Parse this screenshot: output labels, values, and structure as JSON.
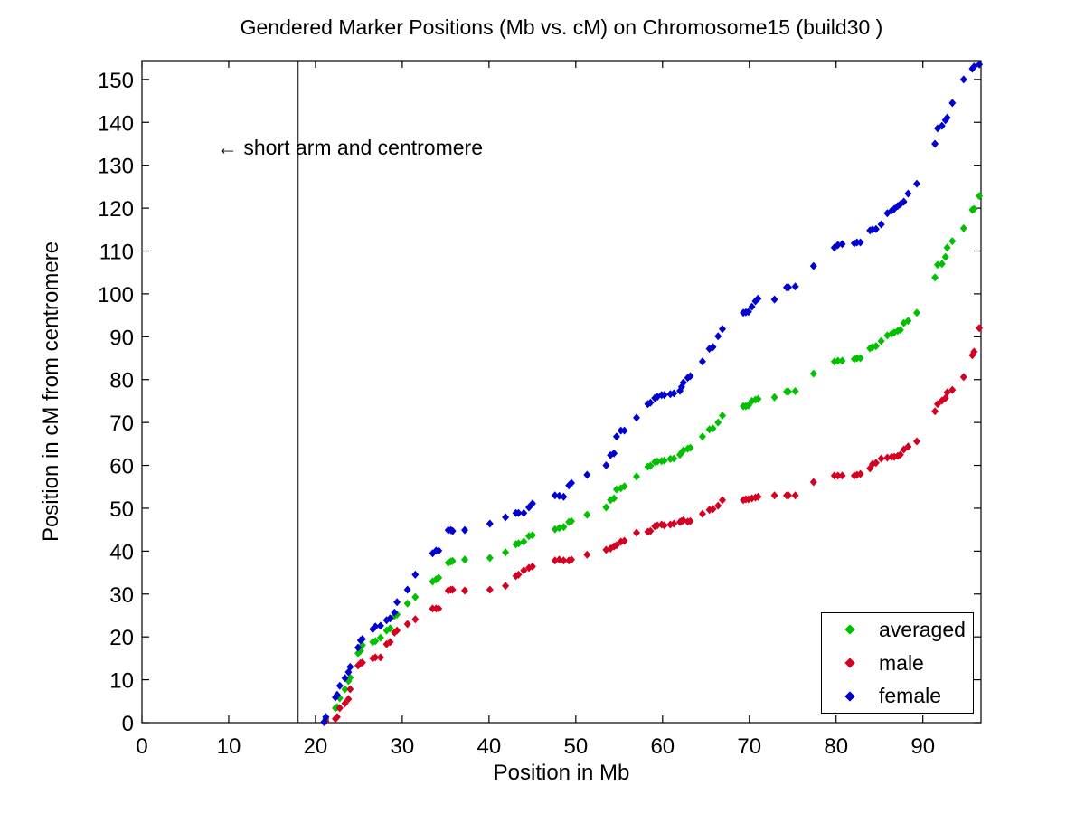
{
  "chart_data": {
    "type": "scatter",
    "title": "Gendered Marker Positions (Mb vs. cM) on Chromosome15 (build30 )",
    "xlabel": "Position in Mb",
    "ylabel": "Position in cM from centromere",
    "xlim": [
      0,
      96.7
    ],
    "ylim": [
      0,
      154.4
    ],
    "xticks": [
      0,
      10,
      20,
      30,
      40,
      50,
      60,
      70,
      80,
      90
    ],
    "yticks": [
      0,
      10,
      20,
      30,
      40,
      50,
      60,
      70,
      80,
      90,
      100,
      110,
      120,
      130,
      140,
      150
    ],
    "grid": false,
    "marker": "diamond",
    "vline_x": 18,
    "annotation": {
      "text": "← short arm and centromere",
      "at_x_mb": 18
    },
    "legend_position": "lower-right",
    "x": [
      21.0,
      21.2,
      22.3,
      22.5,
      22.8,
      23.4,
      23.8,
      24.0,
      24.9,
      25.2,
      25.4,
      26.6,
      26.9,
      27.5,
      28.2,
      28.6,
      29.1,
      29.4,
      30.6,
      31.5,
      33.5,
      33.9,
      34.2,
      35.3,
      35.6,
      35.8,
      37.2,
      40.1,
      41.9,
      43.1,
      43.4,
      44.0,
      44.6,
      45.0,
      47.6,
      48.1,
      48.6,
      49.2,
      49.5,
      51.3,
      53.5,
      54.0,
      54.4,
      54.7,
      55.2,
      55.6,
      57.0,
      58.3,
      58.6,
      59.1,
      59.4,
      59.9,
      60.2,
      60.9,
      61.3,
      62.0,
      62.2,
      62.4,
      62.9,
      63.2,
      64.6,
      65.4,
      65.8,
      66.4,
      66.9,
      69.3,
      69.6,
      69.9,
      70.3,
      70.7,
      71.0,
      72.9,
      74.3,
      74.5,
      75.3,
      77.4,
      79.8,
      80.2,
      80.7,
      82.1,
      82.4,
      82.8,
      83.9,
      84.2,
      84.6,
      85.2,
      85.9,
      86.4,
      86.7,
      87.1,
      87.4,
      87.8,
      88.3,
      89.3,
      91.4,
      91.7,
      92.2,
      92.6,
      92.8,
      93.4,
      94.7,
      95.7,
      95.9,
      96.5
    ],
    "series": [
      {
        "name": "averaged",
        "color": "#00c000",
        "values": [
          0.1,
          0.9,
          3.4,
          3.6,
          5.7,
          7.8,
          9.7,
          10.5,
          16.2,
          16.7,
          18.1,
          18.8,
          19.0,
          19.8,
          21.5,
          22.0,
          24.9,
          25.2,
          27.8,
          29.3,
          32.9,
          33.4,
          33.8,
          37.3,
          37.6,
          37.7,
          38.0,
          38.4,
          39.7,
          41.6,
          41.8,
          42.2,
          43.5,
          43.7,
          45.1,
          45.4,
          45.6,
          46.8,
          47.0,
          48.5,
          50.2,
          51.9,
          52.3,
          54.4,
          54.7,
          55.1,
          57.4,
          59.7,
          59.9,
          60.8,
          60.9,
          61.0,
          61.1,
          61.5,
          61.6,
          62.5,
          63.0,
          63.5,
          63.9,
          64.1,
          66.7,
          68.4,
          68.6,
          70.0,
          71.6,
          73.8,
          73.8,
          74.0,
          75.0,
          75.3,
          75.5,
          75.9,
          77.2,
          77.2,
          77.3,
          81.4,
          84.2,
          84.4,
          84.4,
          84.8,
          85.0,
          85.0,
          87.3,
          87.6,
          87.8,
          89.0,
          90.3,
          90.7,
          91.0,
          91.4,
          91.6,
          93.2,
          93.7,
          95.6,
          103.8,
          106.8,
          107.0,
          108.6,
          110.8,
          112.3,
          115.3,
          119.6,
          119.8,
          122.8
        ]
      },
      {
        "name": "male",
        "color": "#d40022",
        "values": [
          0.1,
          0.4,
          0.9,
          1.3,
          3.4,
          4.5,
          5.5,
          7.8,
          13.3,
          13.9,
          14.0,
          15.0,
          15.2,
          15.2,
          18.3,
          18.8,
          21.0,
          21.5,
          23.0,
          24.1,
          26.6,
          26.6,
          26.6,
          30.8,
          31.0,
          31.0,
          30.8,
          31.0,
          31.9,
          34.2,
          34.5,
          35.5,
          36.1,
          36.4,
          37.8,
          38.0,
          37.8,
          37.8,
          38.0,
          39.2,
          40.3,
          40.6,
          41.1,
          41.4,
          42.2,
          42.4,
          44.3,
          44.5,
          44.7,
          45.8,
          46.0,
          46.2,
          46.0,
          46.2,
          46.4,
          46.8,
          47.0,
          47.2,
          46.9,
          47.0,
          48.7,
          49.6,
          49.8,
          50.6,
          51.9,
          51.9,
          52.1,
          52.1,
          52.3,
          52.5,
          52.7,
          53.0,
          53.0,
          53.0,
          53.0,
          56.1,
          57.6,
          57.6,
          57.6,
          57.6,
          57.8,
          58.0,
          59.3,
          60.3,
          60.6,
          61.6,
          61.8,
          62.0,
          62.0,
          62.2,
          62.5,
          63.7,
          64.4,
          65.6,
          72.6,
          74.3,
          75.1,
          75.7,
          77.0,
          77.6,
          80.6,
          85.7,
          86.5,
          92.0
        ]
      },
      {
        "name": "female",
        "color": "#0000d0",
        "values": [
          0.2,
          1.3,
          5.9,
          6.5,
          8.6,
          10.4,
          11.8,
          13.0,
          17.5,
          19.2,
          19.5,
          21.8,
          22.4,
          22.6,
          23.9,
          24.3,
          25.7,
          28.1,
          31.0,
          34.5,
          39.5,
          40.1,
          40.1,
          44.9,
          44.9,
          44.7,
          44.9,
          46.4,
          47.9,
          48.9,
          48.9,
          48.9,
          50.2,
          51.1,
          53.0,
          52.9,
          52.7,
          55.3,
          55.9,
          57.8,
          60.0,
          62.4,
          62.8,
          66.7,
          68.1,
          68.1,
          71.1,
          74.3,
          74.6,
          75.7,
          76.0,
          76.4,
          76.4,
          76.6,
          76.8,
          77.4,
          78.3,
          79.3,
          80.4,
          80.8,
          84.2,
          87.2,
          87.6,
          90.1,
          91.8,
          95.6,
          95.7,
          95.8,
          97.0,
          98.3,
          98.9,
          98.7,
          101.5,
          101.5,
          101.7,
          106.5,
          110.8,
          111.4,
          111.6,
          111.8,
          112.0,
          112.0,
          114.8,
          115.0,
          115.1,
          116.2,
          118.8,
          119.4,
          119.8,
          120.5,
          120.9,
          121.5,
          123.4,
          125.7,
          135.0,
          138.6,
          139.2,
          140.5,
          141.1,
          144.5,
          150.0,
          152.5,
          153.0,
          153.5
        ]
      }
    ]
  }
}
